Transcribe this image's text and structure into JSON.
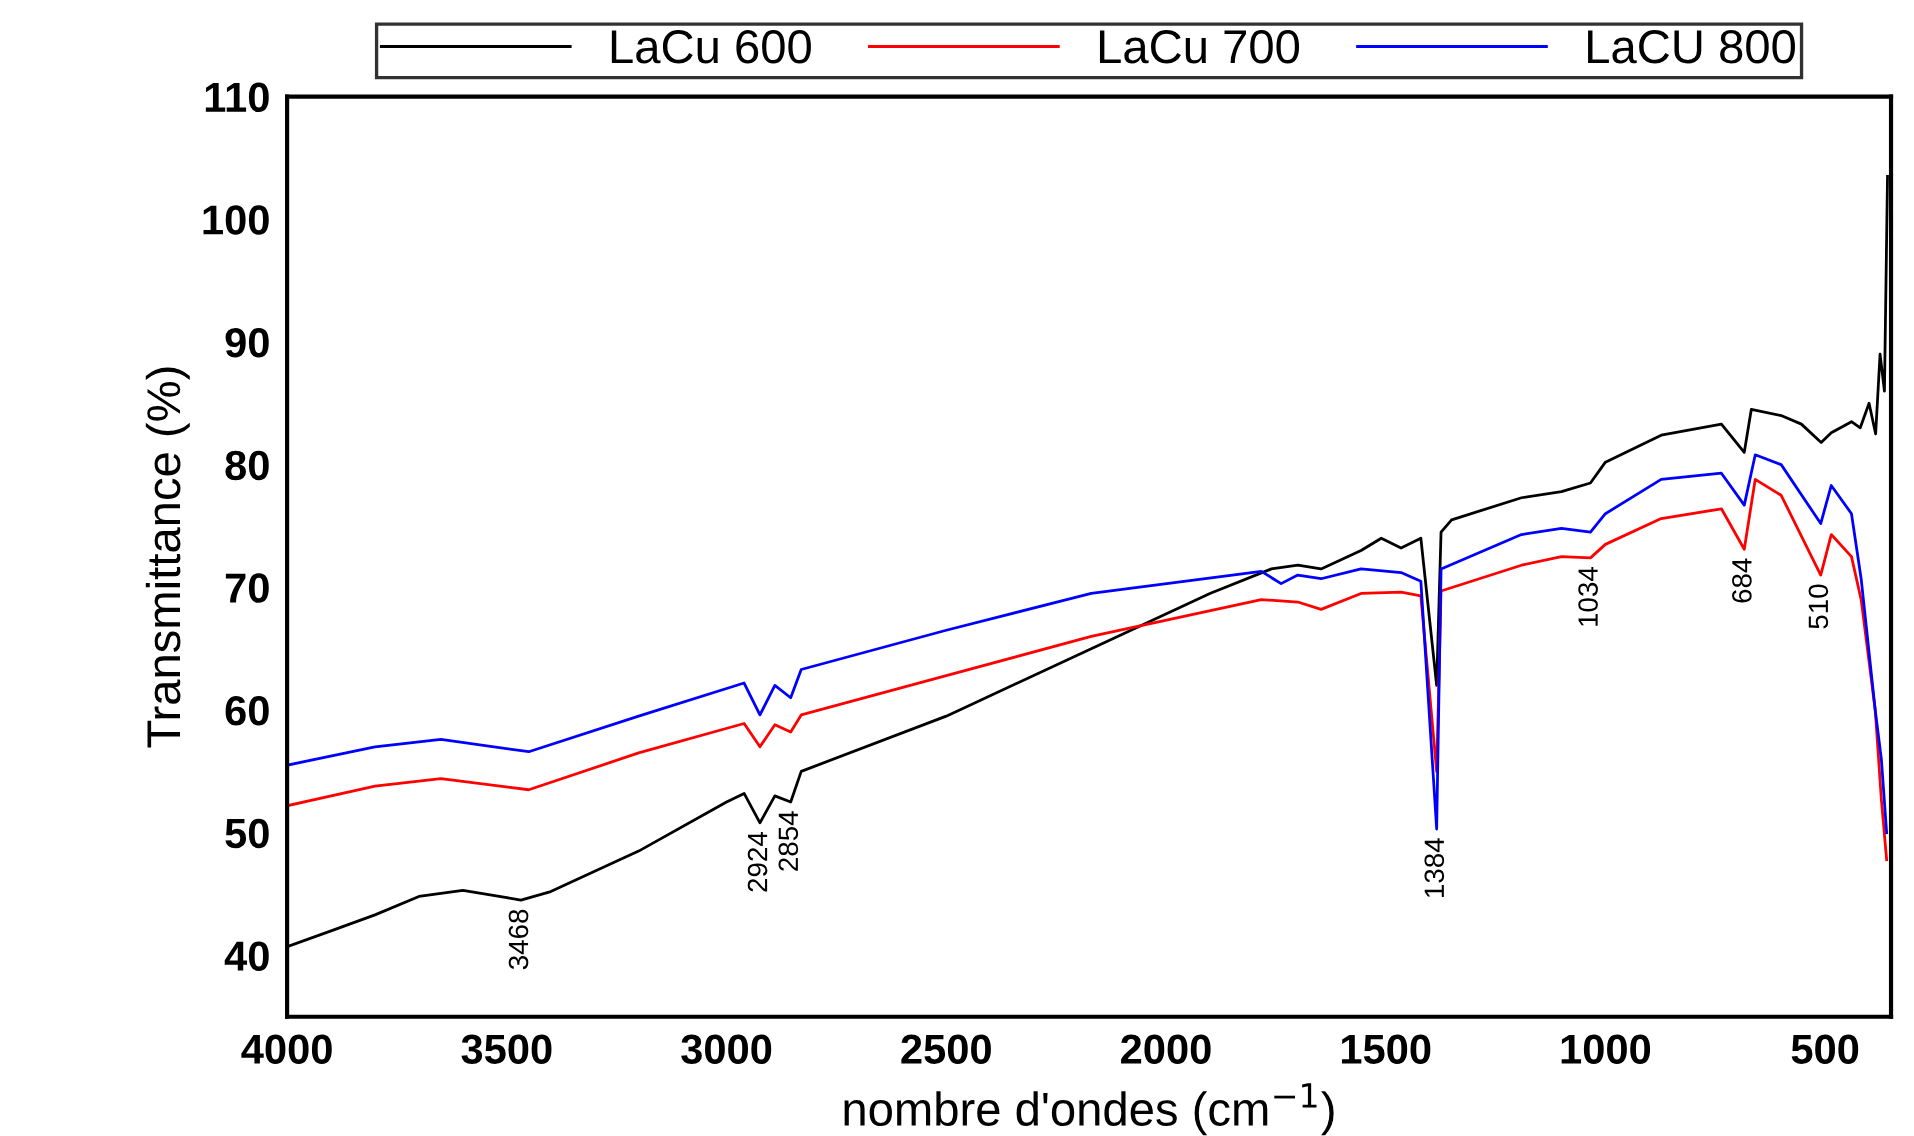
{
  "chart_data": {
    "type": "line",
    "xlabel": "nombre d'ondes (cm$^{−1}$)",
    "ylabel": "Transmittance (%)",
    "xlim": [
      4000,
      350
    ],
    "xticks": [
      4000,
      3500,
      3000,
      2500,
      2000,
      1500,
      1000,
      500
    ],
    "ylim": [
      35,
      110
    ],
    "yticks": [
      40,
      50,
      60,
      70,
      80,
      90,
      100,
      110
    ],
    "grid": false,
    "legend": "top",
    "marker": "none",
    "line_style": "solid",
    "series": [
      {
        "name": "LaCu 600",
        "color": "#000000",
        "x": [
          4000,
          3900,
          3800,
          3700,
          3600,
          3500,
          3468,
          3400,
          3200,
          3000,
          2960,
          2924,
          2890,
          2854,
          2830,
          2500,
          2170,
          1900,
          1760,
          1700,
          1647,
          1556,
          1510,
          1465,
          1420,
          1384,
          1374,
          1350,
          1191,
          1100,
          1034,
          1000,
          873,
          736,
          684,
          668,
          600,
          554,
          509,
          486,
          440,
          420,
          400,
          385,
          375,
          365,
          358
        ],
        "values": [
          40.7,
          42.0,
          43.3,
          44.8,
          45.3,
          44.7,
          44.5,
          45.2,
          48.5,
          52.5,
          53.2,
          50.8,
          53.0,
          52.5,
          55.0,
          59.5,
          65.0,
          69.5,
          71.5,
          71.8,
          71.5,
          73.0,
          74.0,
          73.2,
          74.0,
          62.0,
          74.5,
          75.5,
          77.3,
          77.8,
          78.5,
          80.2,
          82.4,
          83.3,
          81.0,
          84.5,
          84.0,
          83.3,
          81.8,
          82.6,
          83.5,
          83.0,
          85.0,
          82.5,
          89.0,
          86.0,
          103.5
        ]
      },
      {
        "name": "LaCu 700",
        "color": "#ff0000",
        "x": [
          4000,
          3800,
          3650,
          3450,
          3200,
          2960,
          2924,
          2890,
          2854,
          2830,
          2500,
          2170,
          1783,
          1700,
          1647,
          1556,
          1465,
          1420,
          1384,
          1374,
          1191,
          1100,
          1034,
          1000,
          873,
          736,
          684,
          659,
          600,
          510,
          486,
          440,
          418,
          386,
          372,
          360
        ],
        "values": [
          52.2,
          53.8,
          54.4,
          53.5,
          56.5,
          58.9,
          57.0,
          58.8,
          58.2,
          59.6,
          62.8,
          66.0,
          69.0,
          68.8,
          68.2,
          69.5,
          69.6,
          69.3,
          55.0,
          69.7,
          71.8,
          72.5,
          72.4,
          73.5,
          75.6,
          76.4,
          73.1,
          78.8,
          77.5,
          71.0,
          74.3,
          72.5,
          69.0,
          60.0,
          52.7,
          47.8
        ]
      },
      {
        "name": "LaCU 800",
        "color": "#0000ff",
        "x": [
          4000,
          3800,
          3650,
          3450,
          3200,
          2960,
          2924,
          2890,
          2854,
          2830,
          2500,
          2170,
          1783,
          1738,
          1700,
          1647,
          1556,
          1465,
          1420,
          1384,
          1374,
          1191,
          1100,
          1034,
          1000,
          873,
          736,
          684,
          659,
          600,
          510,
          486,
          440,
          418,
          386,
          372,
          360
        ],
        "values": [
          55.5,
          57.0,
          57.6,
          56.6,
          59.5,
          62.2,
          59.6,
          62.0,
          61.0,
          63.3,
          66.5,
          69.5,
          71.3,
          70.3,
          71.0,
          70.7,
          71.5,
          71.2,
          70.5,
          50.3,
          71.5,
          74.3,
          74.8,
          74.5,
          76.0,
          78.8,
          79.3,
          76.7,
          80.8,
          80.0,
          75.2,
          78.3,
          76.0,
          70.7,
          60.0,
          56.0,
          50.0
        ]
      }
    ],
    "annotations": [
      {
        "text": "3468",
        "x": 3468,
        "y": 44.5
      },
      {
        "text": "2924",
        "x": 2924,
        "y": 50.8
      },
      {
        "text": "2854",
        "x": 2854,
        "y": 52.5
      },
      {
        "text": "1384",
        "x": 1384,
        "y": 50.3
      },
      {
        "text": "1034",
        "x": 1034,
        "y": 72.4
      },
      {
        "text": "684",
        "x": 684,
        "y": 73.1
      },
      {
        "text": "510",
        "x": 510,
        "y": 71.0
      }
    ]
  }
}
